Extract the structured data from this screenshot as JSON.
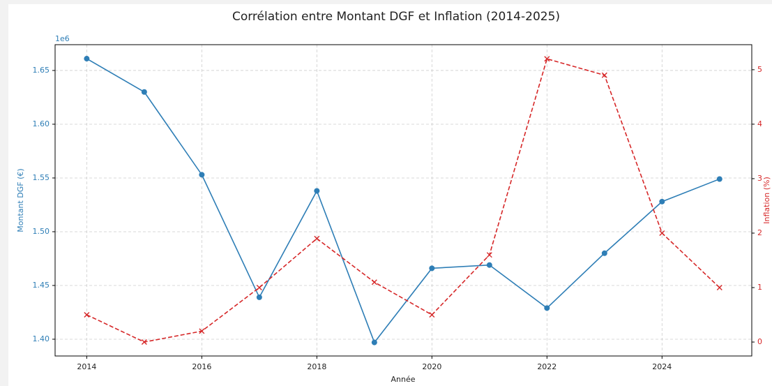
{
  "chart_data": {
    "type": "line",
    "title": "Corrélation entre Montant DGF et Inflation (2014-2025)",
    "xlabel": "Année",
    "ylabel": "Montant DGF (€)",
    "y2label": "Inflation (%)",
    "y_offset_label": "1e6",
    "x": [
      2014,
      2015,
      2016,
      2017,
      2018,
      2019,
      2020,
      2021,
      2022,
      2023,
      2024,
      2025
    ],
    "series": [
      {
        "name": "Montant DGF (€)",
        "color": "#2e7eb6",
        "marker": "o",
        "linestyle": "solid",
        "values": [
          1.661,
          1.63,
          1.553,
          1.439,
          1.538,
          1.397,
          1.466,
          1.469,
          1.429,
          1.48,
          1.528,
          1.549
        ]
      },
      {
        "name": "Inflation (%)",
        "color": "#d62728",
        "marker": "x",
        "linestyle": "dashed",
        "axis": "y2",
        "values": [
          0.5,
          0,
          0.2,
          1.0,
          1.9,
          1.1,
          0.5,
          1.6,
          5.2,
          4.9,
          2.0,
          1.0
        ]
      }
    ],
    "xlim": [
      2013.45,
      2025.56
    ],
    "xticks": [
      2014,
      2016,
      2018,
      2020,
      2022,
      2024
    ],
    "ylim": [
      1.3844,
      1.674
    ],
    "yticks": [
      {
        "value": 1.4,
        "label": "1.40"
      },
      {
        "value": 1.45,
        "label": "1.45"
      },
      {
        "value": 1.5,
        "label": "1.50"
      },
      {
        "value": 1.55,
        "label": "1.55"
      },
      {
        "value": 1.6,
        "label": "1.60"
      },
      {
        "value": 1.65,
        "label": "1.65"
      }
    ],
    "y2lim": [
      -0.256,
      5.46
    ],
    "y2ticks": [
      0,
      1,
      2,
      3,
      4,
      5
    ],
    "grid": true
  }
}
